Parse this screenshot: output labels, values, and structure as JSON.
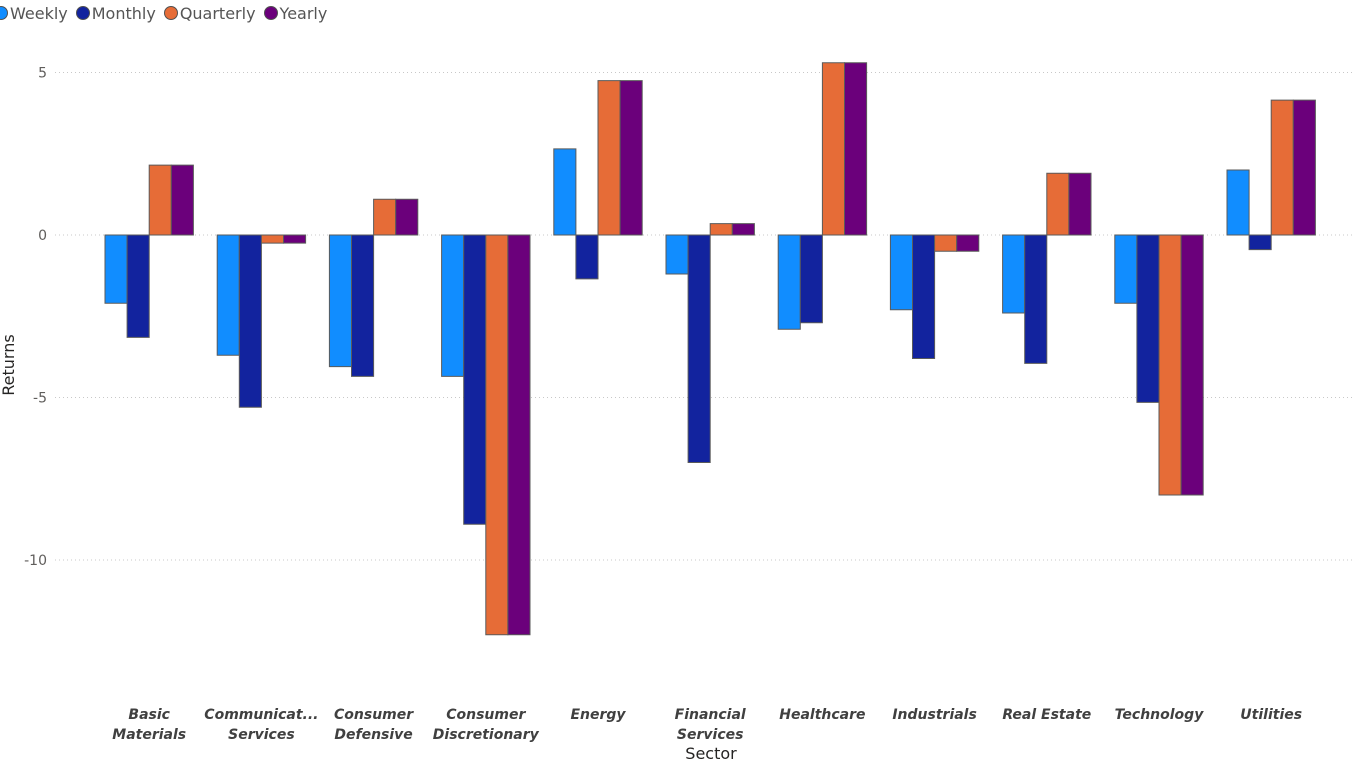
{
  "chart_data": {
    "type": "bar",
    "title": "",
    "xlabel": "Sector",
    "ylabel": "Returns",
    "categories": [
      [
        "Basic",
        "Materials"
      ],
      [
        "Communicat...",
        "Services"
      ],
      [
        "Consumer",
        "Defensive"
      ],
      [
        "Consumer",
        "Discretionary"
      ],
      [
        "Energy"
      ],
      [
        "Financial",
        "Services"
      ],
      [
        "Healthcare"
      ],
      [
        "Industrials"
      ],
      [
        "Real Estate"
      ],
      [
        "Technology"
      ],
      [
        "Utilities"
      ]
    ],
    "series": [
      {
        "name": "Weekly",
        "color": "#118DFF",
        "values": [
          -2.1,
          -3.7,
          -4.05,
          -4.35,
          2.65,
          -1.2,
          -2.9,
          -2.3,
          -2.4,
          -2.1,
          2.0
        ]
      },
      {
        "name": "Monthly",
        "color": "#12239E",
        "values": [
          -3.15,
          -5.3,
          -4.35,
          -8.9,
          -1.35,
          -7.0,
          -2.7,
          -3.8,
          -3.95,
          -5.15,
          -0.45
        ]
      },
      {
        "name": "Quarterly",
        "color": "#E66C37",
        "values": [
          2.15,
          -0.25,
          1.1,
          -12.3,
          4.75,
          0.35,
          5.3,
          -0.5,
          1.9,
          -8.0,
          4.15
        ]
      },
      {
        "name": "Yearly",
        "color": "#6B007B",
        "values": [
          2.15,
          -0.25,
          1.1,
          -12.3,
          4.75,
          0.35,
          5.3,
          -0.5,
          1.9,
          -8.0,
          4.15
        ]
      }
    ],
    "y_ticks": [
      5,
      0,
      -5,
      -10
    ],
    "ylim": [
      -13.5,
      6
    ],
    "gridlines": true,
    "legend_position": "top-left"
  }
}
